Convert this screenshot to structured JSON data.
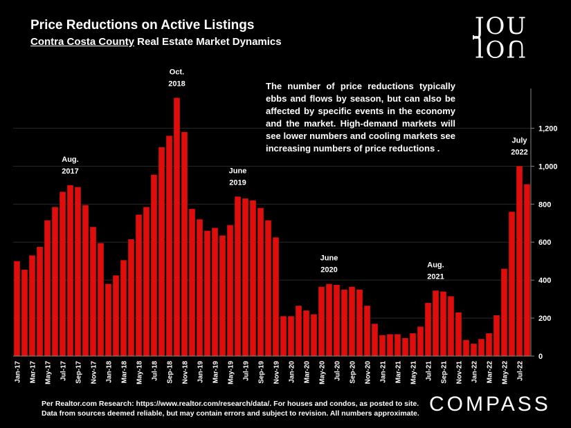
{
  "header": {
    "title": "Price Reductions on Active Listings",
    "subtitle_underlined": "Contra Costa County",
    "subtitle_rest": " Real Estate Market Dynamics"
  },
  "logo": {
    "top": "JOU",
    "bottom": "JOU"
  },
  "note": "The number of price reductions typically ebbs and flows by season, but can also be affected by specific events in the economy and the market. High-demand markets will see lower numbers and cooling markets see increasing numbers of price reductions .",
  "footer": {
    "line1": "Per Realtor.com Research:  https://www.realtor.com/research/data/. For houses and condos, as posted to site.",
    "line2": "Data from sources deemed reliable, but may contain errors and subject to revision. All numbers approximate."
  },
  "brand": "COMPASS",
  "colors": {
    "bar": "#e00d0d",
    "grid": "#2a2a2a"
  },
  "chart_data": {
    "type": "bar",
    "title": "Price Reductions on Active Listings",
    "ylim": [
      0,
      1380
    ],
    "yticks": [
      0,
      200,
      400,
      600,
      800,
      1000,
      1200
    ],
    "ytick_labels": [
      "0",
      "200",
      "400",
      "600",
      "800",
      "1,000",
      "1,200"
    ],
    "categories": [
      "Jan-17",
      "Feb-17",
      "Mar-17",
      "Apr-17",
      "May-17",
      "Jun-17",
      "Jul-17",
      "Aug-17",
      "Sep-17",
      "Oct-17",
      "Nov-17",
      "Dec-17",
      "Jan-18",
      "Feb-18",
      "Mar-18",
      "Apr-18",
      "May-18",
      "Jun-18",
      "Jul-18",
      "Aug-18",
      "Sep-18",
      "Oct-18",
      "Nov-18",
      "Dec-18",
      "Jan-19",
      "Feb-19",
      "Mar-19",
      "Apr-19",
      "May-19",
      "Jun-19",
      "Jul-19",
      "Aug-19",
      "Sep-19",
      "Oct-19",
      "Nov-19",
      "Dec-19",
      "Jan-20",
      "Feb-20",
      "Mar-20",
      "Apr-20",
      "May-20",
      "Jun-20",
      "Jul-20",
      "Aug-20",
      "Sep-20",
      "Oct-20",
      "Nov-20",
      "Dec-20",
      "Jan-21",
      "Feb-21",
      "Mar-21",
      "Apr-21",
      "May-21",
      "Jun-21",
      "Jul-21",
      "Aug-21",
      "Sep-21",
      "Oct-21",
      "Nov-21",
      "Dec-21",
      "Jan-22",
      "Feb-22",
      "Mar-22",
      "Apr-22",
      "May-22",
      "Jun-22",
      "Jul-22",
      "Aug-22"
    ],
    "shown_labels": [
      "Jan-17",
      "Mar-17",
      "May-17",
      "Jul-17",
      "Sep-17",
      "Nov-17",
      "Jan-18",
      "Mar-18",
      "May-18",
      "Jul-18",
      "Sep-18",
      "Nov-18",
      "Jan-19",
      "Mar-19",
      "May-19",
      "Jul-19",
      "Sep-19",
      "Nov-19",
      "Jan-20",
      "Mar-20",
      "May-20",
      "Jul-20",
      "Sep-20",
      "Nov-20",
      "Jan-21",
      "Mar-21",
      "May-21",
      "Jul-21",
      "Sep-21",
      "Nov-21",
      "Jan-22",
      "Mar-22",
      "May-22",
      "Jul-22"
    ],
    "values": [
      500,
      455,
      530,
      575,
      715,
      785,
      865,
      900,
      890,
      795,
      680,
      595,
      380,
      425,
      505,
      615,
      745,
      785,
      955,
      1100,
      1160,
      1360,
      1180,
      775,
      720,
      660,
      675,
      635,
      690,
      840,
      830,
      820,
      780,
      715,
      625,
      210,
      210,
      265,
      240,
      220,
      365,
      380,
      375,
      350,
      365,
      350,
      265,
      170,
      110,
      115,
      115,
      95,
      120,
      155,
      280,
      345,
      340,
      315,
      230,
      85,
      65,
      90,
      120,
      215,
      460,
      760,
      1000,
      905
    ],
    "annotations": [
      {
        "index": 7,
        "text": [
          "Aug.",
          "2017"
        ]
      },
      {
        "index": 21,
        "text": [
          "Oct.",
          "2018"
        ]
      },
      {
        "index": 29,
        "text": [
          "June",
          "2019"
        ]
      },
      {
        "index": 41,
        "text": [
          "June",
          "2020"
        ]
      },
      {
        "index": 55,
        "text": [
          "Aug.",
          "2021"
        ]
      },
      {
        "index": 66,
        "text": [
          "July",
          "2022"
        ]
      }
    ]
  }
}
